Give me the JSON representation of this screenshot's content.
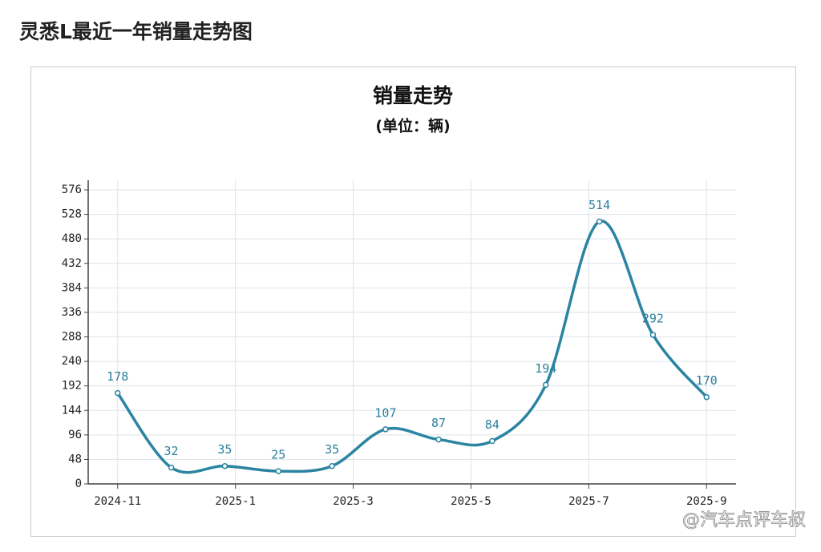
{
  "heading": "灵悉L最近一年销量走势图",
  "chart_data": {
    "type": "line",
    "title": "销量走势",
    "subtitle": "(单位：辆)",
    "x": [
      0,
      0.91,
      1.82,
      2.73,
      3.64,
      4.55,
      5.45,
      6.36,
      7.27,
      8.18,
      9.09,
      10
    ],
    "values": [
      178,
      32,
      35,
      25,
      35,
      107,
      87,
      84,
      194,
      514,
      292,
      170
    ],
    "color": "#2b84a1",
    "xlim": [
      -0.5,
      10.5
    ],
    "xticks": [
      {
        "value": 0,
        "label": "2024-11"
      },
      {
        "value": 2,
        "label": "2025-1"
      },
      {
        "value": 4,
        "label": "2025-3"
      },
      {
        "value": 6,
        "label": "2025-5"
      },
      {
        "value": 8,
        "label": "2025-7"
      },
      {
        "value": 10,
        "label": "2025-9"
      }
    ],
    "ylim": [
      0,
      576
    ],
    "yticks": [
      0,
      48,
      96,
      144,
      192,
      240,
      288,
      336,
      384,
      432,
      480,
      528,
      576
    ],
    "grid": true
  },
  "watermark": "@汽车点评车叔"
}
